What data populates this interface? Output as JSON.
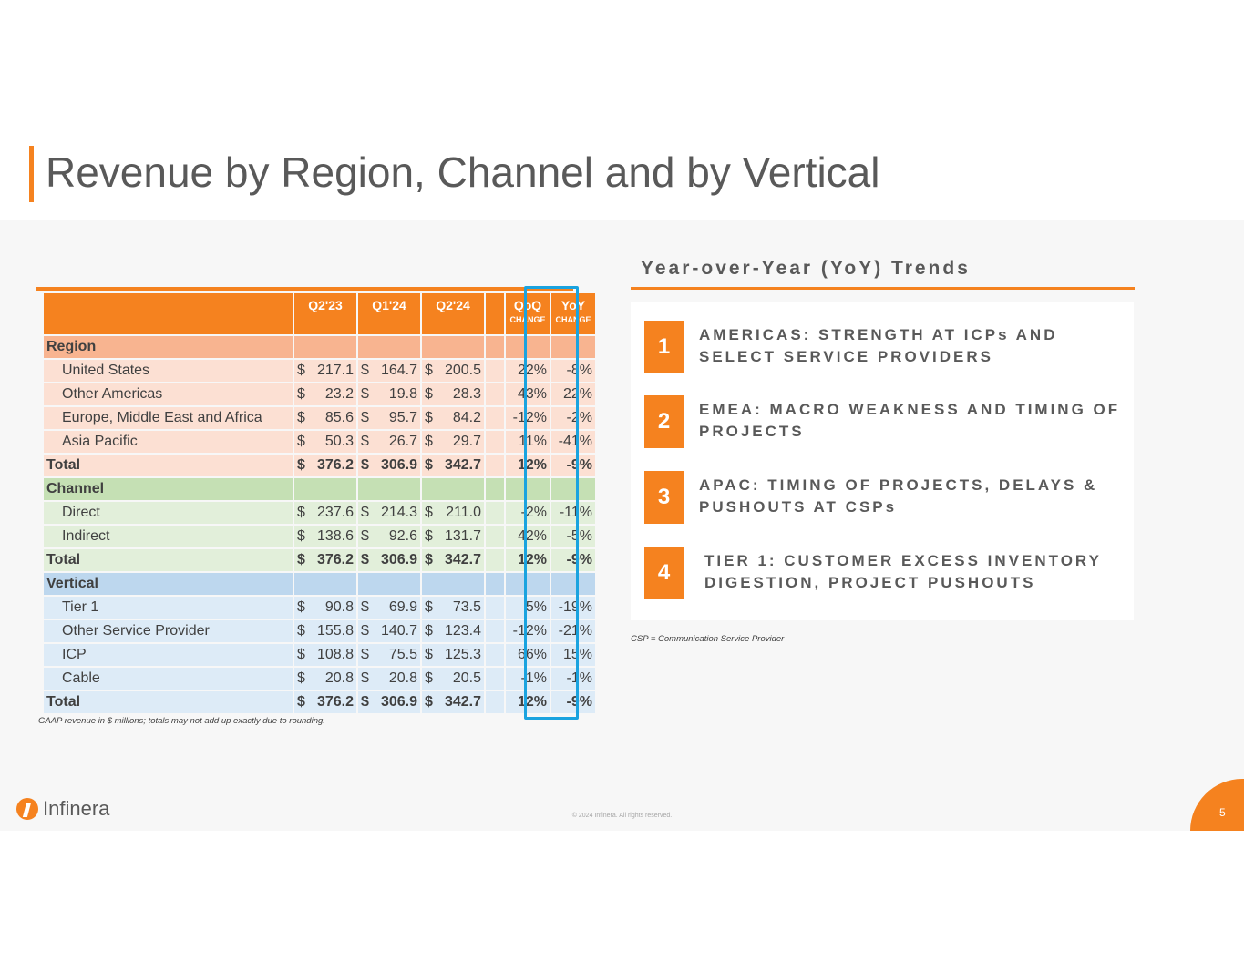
{
  "title": "Revenue by Region, Channel and by Vertical",
  "table": {
    "headers": [
      {
        "label": "Q2'23",
        "sub": ""
      },
      {
        "label": "Q1'24",
        "sub": ""
      },
      {
        "label": "Q2'24",
        "sub": ""
      },
      {
        "label": "QoQ",
        "sub": "CHANGE"
      },
      {
        "label": "YoY",
        "sub": "CHANGE"
      }
    ],
    "sections": [
      {
        "name": "Region",
        "theme": "reg",
        "rows": [
          {
            "label": "United States",
            "v": [
              "$217.1",
              "$164.7",
              "$200.5"
            ],
            "qoq": "22%",
            "yoy": "-8%"
          },
          {
            "label": "Other Americas",
            "v": [
              "$ 23.2",
              "$ 19.8",
              "$ 28.3"
            ],
            "qoq": "43%",
            "yoy": "22%"
          },
          {
            "label": "Europe, Middle East and Africa",
            "v": [
              "$ 85.6",
              "$ 95.7",
              "$ 84.2"
            ],
            "qoq": "-12%",
            "yoy": "-2%"
          },
          {
            "label": "Asia Pacific",
            "v": [
              "$ 50.3",
              "$ 26.7",
              "$ 29.7"
            ],
            "qoq": "11%",
            "yoy": "-41%"
          }
        ],
        "total": {
          "label": "Total",
          "v": [
            "$376.2",
            "$306.9",
            "$342.7"
          ],
          "qoq": "12%",
          "yoy": "-9%"
        }
      },
      {
        "name": "Channel",
        "theme": "ch",
        "rows": [
          {
            "label": "Direct",
            "v": [
              "$237.6",
              "$214.3",
              "$211.0"
            ],
            "qoq": "-2%",
            "yoy": "-11%"
          },
          {
            "label": "Indirect",
            "v": [
              "$138.6",
              "$ 92.6",
              "$131.7"
            ],
            "qoq": "42%",
            "yoy": "-5%"
          }
        ],
        "total": {
          "label": "Total",
          "v": [
            "$376.2",
            "$306.9",
            "$342.7"
          ],
          "qoq": "12%",
          "yoy": "-9%"
        }
      },
      {
        "name": "Vertical",
        "theme": "vt",
        "rows": [
          {
            "label": "Tier 1",
            "v": [
              "$ 90.8",
              "$ 69.9",
              "$ 73.5"
            ],
            "qoq": "5%",
            "yoy": "-19%"
          },
          {
            "label": "Other Service Provider",
            "v": [
              "$155.8",
              "$140.7",
              "$123.4"
            ],
            "qoq": "-12%",
            "yoy": "-21%"
          },
          {
            "label": "ICP",
            "v": [
              "$108.8",
              "$ 75.5",
              "$125.3"
            ],
            "qoq": "66%",
            "yoy": "15%"
          },
          {
            "label": "Cable",
            "v": [
              "$ 20.8",
              "$ 20.8",
              "$ 20.5"
            ],
            "qoq": "-1%",
            "yoy": "-1%"
          }
        ],
        "total": {
          "label": "Total",
          "v": [
            "$376.2",
            "$306.9",
            "$342.7"
          ],
          "qoq": "12%",
          "yoy": "-9%"
        }
      }
    ],
    "footnote": "GAAP revenue in $ millions; totals may not add up exactly due to rounding."
  },
  "trends": {
    "title": "Year-over-Year (YoY) Trends",
    "items": [
      {
        "num": "1",
        "text": "AMERICAS: STRENGTH AT ICPs AND SELECT SERVICE PROVIDERS"
      },
      {
        "num": "2",
        "text": "EMEA: MACRO WEAKNESS AND TIMING OF PROJECTS"
      },
      {
        "num": "3",
        "text": "APAC: TIMING OF PROJECTS, DELAYS & PUSHOUTS AT CSPs"
      },
      {
        "num": "4",
        "text": "TIER 1: CUSTOMER EXCESS INVENTORY DIGESTION, PROJECT PUSHOUTS"
      }
    ],
    "footnote": "CSP = Communication Service Provider"
  },
  "footer": {
    "logo_text": "Infinera",
    "copyright": "© 2024 Infinera. All rights reserved.",
    "page_number": "5"
  },
  "colors": {
    "accent": "#f5821f",
    "highlight_box": "#1aa3df",
    "region": "#fce0d3",
    "channel": "#e2efda",
    "vertical": "#ddebf7"
  }
}
